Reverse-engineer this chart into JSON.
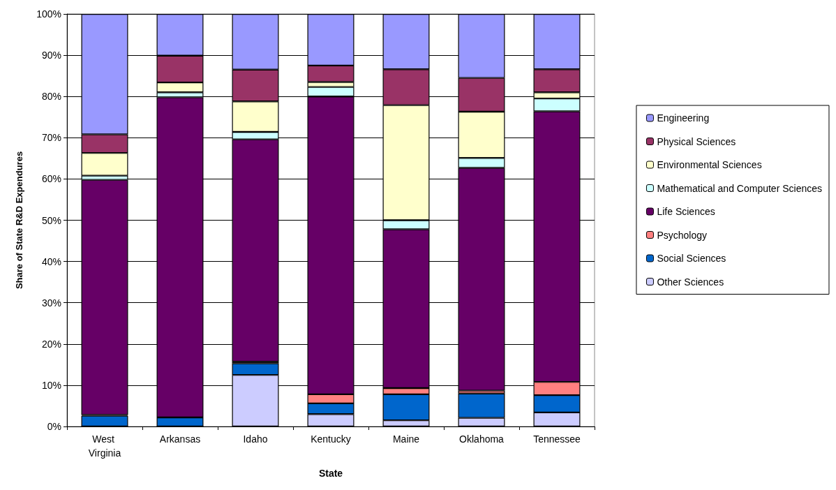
{
  "chart_data": {
    "type": "bar",
    "stacked": true,
    "xlabel": "State",
    "ylabel": "Share of State R&D Expendures",
    "categories": [
      "West Virginia",
      "Arkansas",
      "Idaho",
      "Kentucky",
      "Maine",
      "Oklahoma",
      "Tennessee"
    ],
    "series": [
      {
        "name": "Other Sciences",
        "color": "#ccccff",
        "values": [
          0,
          0,
          12.5,
          3.0,
          1.5,
          2.1,
          3.4
        ]
      },
      {
        "name": "Social Sciences",
        "color": "#0066cc",
        "values": [
          2.6,
          2.2,
          2.8,
          2.6,
          6.3,
          5.9,
          4.2
        ]
      },
      {
        "name": "Psychology",
        "color": "#ff8080",
        "values": [
          0.2,
          null,
          0.4,
          2.2,
          1.5,
          0.7,
          3.2
        ]
      },
      {
        "name": "Life Sciences",
        "color": "#660066",
        "values": [
          57.0,
          77.6,
          53.9,
          72.2,
          38.5,
          54.0,
          65.6
        ]
      },
      {
        "name": "Mathematical and Computer Sciences",
        "color": "#ccffff",
        "values": [
          1.0,
          1.2,
          1.8,
          2.3,
          2.2,
          2.4,
          3.1
        ]
      },
      {
        "name": "Environmental Sciences",
        "color": "#ffffcc",
        "values": [
          5.5,
          2.4,
          7.4,
          1.2,
          27.9,
          11.2,
          1.5
        ]
      },
      {
        "name": "Physical Sciences",
        "color": "#993366",
        "values": [
          4.5,
          6.5,
          7.7,
          4.0,
          8.7,
          8.2,
          5.6
        ]
      },
      {
        "name": "Engineering",
        "color": "#9999ff",
        "values": [
          29.2,
          10.1,
          13.5,
          12.5,
          13.4,
          15.5,
          13.4
        ]
      }
    ],
    "ylim": [
      0,
      100
    ],
    "yticks": [
      {
        "value": 0,
        "label": "0%"
      },
      {
        "value": 10,
        "label": "10%"
      },
      {
        "value": 20,
        "label": "20%"
      },
      {
        "value": 30,
        "label": "30%"
      },
      {
        "value": 40,
        "label": "40%"
      },
      {
        "value": 50,
        "label": "50%"
      },
      {
        "value": 60,
        "label": "60%"
      },
      {
        "value": 70,
        "label": "70%"
      },
      {
        "value": 80,
        "label": "80%"
      },
      {
        "value": 90,
        "label": "90%"
      },
      {
        "value": 100,
        "label": "100%"
      }
    ],
    "grid": "y",
    "legend": "right"
  }
}
